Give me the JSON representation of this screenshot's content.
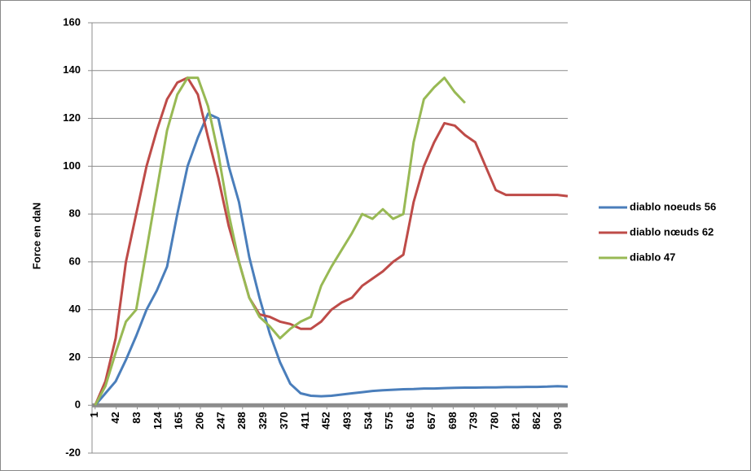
{
  "chart_data": {
    "type": "line",
    "y_label": "Force en daN",
    "x": [
      1,
      21,
      41,
      61,
      81,
      101,
      121,
      141,
      161,
      181,
      201,
      221,
      241,
      261,
      281,
      301,
      321,
      341,
      361,
      381,
      401,
      421,
      441,
      461,
      481,
      501,
      521,
      541,
      561,
      581,
      601,
      621,
      641,
      661,
      681,
      701,
      721,
      741,
      761,
      781,
      801,
      821,
      841,
      861,
      881,
      901,
      921
    ],
    "series": [
      {
        "name": "diablo noeuds 56",
        "color": "#4a7ebb",
        "values": [
          0,
          5,
          10,
          19,
          29,
          40,
          48,
          58,
          80,
          100,
          112,
          122,
          120,
          100,
          85,
          62,
          45,
          30,
          18,
          9,
          5,
          4,
          3.8,
          4,
          4.5,
          5,
          5.5,
          6,
          6.3,
          6.5,
          6.7,
          6.8,
          7,
          7,
          7.2,
          7.3,
          7.4,
          7.4,
          7.5,
          7.5,
          7.6,
          7.6,
          7.7,
          7.7,
          7.8,
          8,
          7.8
        ]
      },
      {
        "name": "diablo nœuds 62",
        "color": "#be4b48",
        "values": [
          0,
          10,
          28,
          60,
          80,
          100,
          115,
          128,
          135,
          137,
          130,
          112,
          95,
          75,
          60,
          45,
          38,
          37,
          35,
          34,
          32,
          32,
          35,
          40,
          43,
          45,
          50,
          53,
          56,
          60,
          63,
          85,
          100,
          110,
          118,
          117,
          113,
          110,
          100,
          90,
          88,
          88,
          88,
          88,
          88,
          88,
          87.5
        ]
      },
      {
        "name": "diablo 47",
        "color": "#98b954",
        "values": [
          0,
          8,
          22,
          35,
          40,
          65,
          90,
          115,
          130,
          137,
          137,
          125,
          105,
          80,
          60,
          45,
          37,
          33,
          28,
          32,
          35,
          37,
          50,
          58,
          65,
          72,
          80,
          78,
          82,
          78,
          80,
          110,
          128,
          133,
          137,
          131,
          126.5,
          null,
          null,
          null,
          null,
          null,
          null,
          null,
          null,
          null,
          null
        ]
      }
    ],
    "xlim": [
      -5,
      921
    ],
    "xticks": [
      1,
      42,
      83,
      124,
      165,
      206,
      247,
      288,
      329,
      370,
      411,
      452,
      493,
      534,
      575,
      616,
      657,
      698,
      739,
      780,
      821,
      862,
      903
    ],
    "ylim": [
      -20,
      160
    ],
    "yticks": [
      -20,
      0,
      20,
      40,
      60,
      80,
      100,
      120,
      140,
      160
    ],
    "grid": true,
    "legend": "right"
  }
}
